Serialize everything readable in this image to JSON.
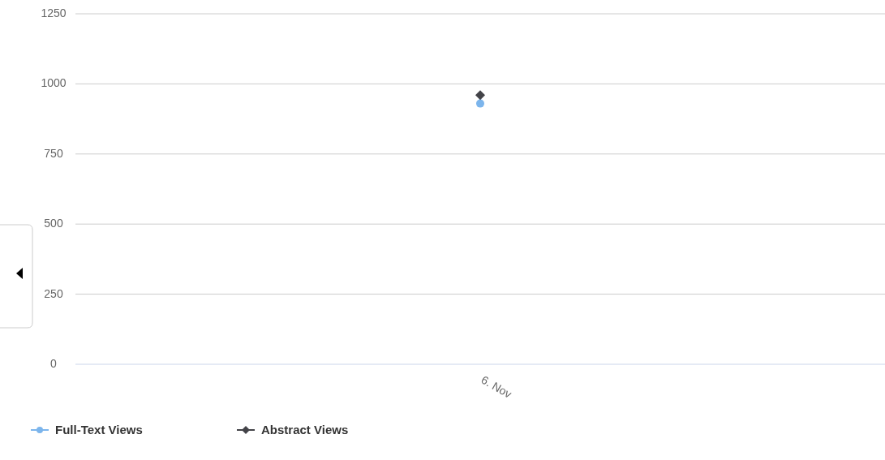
{
  "chart_data": {
    "type": "line",
    "categories": [
      "6. Nov"
    ],
    "series": [
      {
        "name": "Full-Text Views",
        "color": "#7cb5ec",
        "values": [
          930
        ],
        "marker": "circle"
      },
      {
        "name": "Abstract Views",
        "color": "#434348",
        "values": [
          960
        ],
        "marker": "diamond"
      }
    ],
    "ylim": [
      0,
      1250
    ],
    "yticks": [
      0,
      250,
      500,
      750,
      1000,
      1250
    ],
    "grid": "y",
    "legend": "bottom left"
  }
}
